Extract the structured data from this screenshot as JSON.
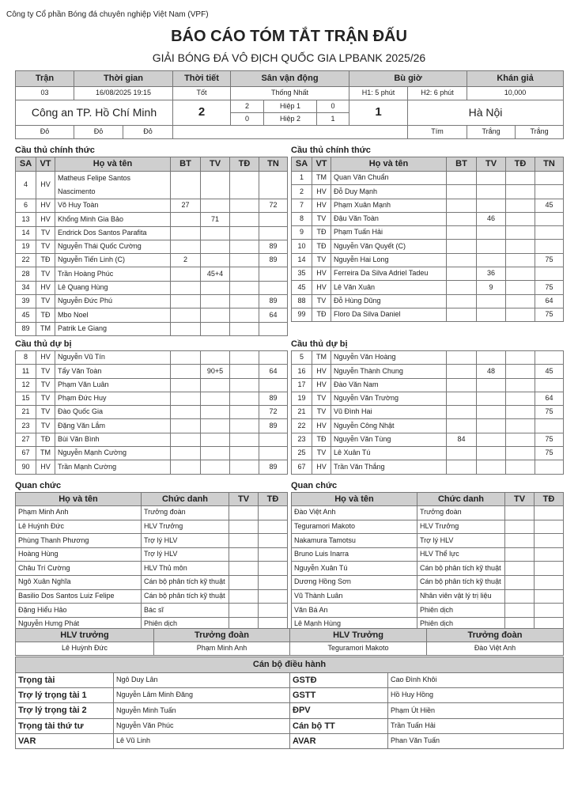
{
  "organization": "Công ty Cổ phần Bóng đá chuyên nghiệp Việt Nam (VPF)",
  "title": "BÁO CÁO TÓM TẮT TRẬN ĐẤU",
  "subtitle": "GIẢI BÓNG ĐÁ VÔ ĐỊCH QUỐC GIA LPBANK 2025/26",
  "match": {
    "headers": [
      "Trận",
      "Thời gian",
      "Thời tiết",
      "Sân vận động",
      "Bù giờ",
      "Khán giả"
    ],
    "match_no": "03",
    "time": "16/08/2025 19:15",
    "weather": "Tốt",
    "stadium": "Thống Nhất",
    "added_h1": "H1: 5 phút",
    "added_h2": "H2: 6 phút",
    "attendance": "10,000",
    "home_team": "Công an TP. Hồ Chí Minh",
    "away_team": "Hà Nội",
    "home_score": "2",
    "away_score": "1",
    "half1": {
      "label": "Hiệp 1",
      "home": "2",
      "away": "0"
    },
    "half2": {
      "label": "Hiệp 2",
      "home": "0",
      "away": "1"
    },
    "home_colors": [
      "Đỏ",
      "Đỏ",
      "Đỏ"
    ],
    "away_colors": [
      "Tím",
      "Trắng",
      "Trắng"
    ]
  },
  "labels": {
    "starters": "Cầu thủ chính thức",
    "subs": "Cầu thủ dự bị",
    "officials": "Quan chức",
    "player_headers": [
      "SA",
      "VT",
      "Họ và tên",
      "BT",
      "TV",
      "TĐ",
      "TN"
    ],
    "official_headers": [
      "Họ và tên",
      "Chức danh",
      "TV",
      "TĐ"
    ]
  },
  "home": {
    "starters": [
      [
        "4",
        "HV",
        "Matheus Felipe Santos Nascimento",
        "",
        "",
        "",
        ""
      ],
      [
        "6",
        "HV",
        "Võ Huy Toàn",
        "27",
        "",
        "",
        "72"
      ],
      [
        "13",
        "HV",
        "Khổng Minh Gia Bảo",
        "",
        "71",
        "",
        ""
      ],
      [
        "14",
        "TV",
        "Endrick Dos Santos Parafita",
        "",
        "",
        "",
        ""
      ],
      [
        "19",
        "TV",
        "Nguyễn Thái Quốc Cường",
        "",
        "",
        "",
        "89"
      ],
      [
        "22",
        "TĐ",
        "Nguyễn Tiến Linh (C)",
        "2",
        "",
        "",
        "89"
      ],
      [
        "28",
        "TV",
        "Trần Hoàng Phúc",
        "",
        "45+4",
        "",
        ""
      ],
      [
        "34",
        "HV",
        "Lê Quang Hùng",
        "",
        "",
        "",
        ""
      ],
      [
        "39",
        "TV",
        "Nguyễn Đức Phú",
        "",
        "",
        "",
        "89"
      ],
      [
        "45",
        "TĐ",
        "Mbo Noel",
        "",
        "",
        "",
        "64"
      ],
      [
        "89",
        "TM",
        "Patrik Le Giang",
        "",
        "",
        "",
        ""
      ]
    ],
    "subs": [
      [
        "8",
        "HV",
        "Nguyễn Vũ Tín",
        "",
        "",
        "",
        ""
      ],
      [
        "11",
        "TV",
        "Tẩy Văn Toàn",
        "",
        "90+5",
        "",
        "64"
      ],
      [
        "12",
        "TV",
        "Phạm Văn Luân",
        "",
        "",
        "",
        ""
      ],
      [
        "15",
        "TV",
        "Phạm Đức Huy",
        "",
        "",
        "",
        "89"
      ],
      [
        "21",
        "TV",
        "Đào Quốc Gia",
        "",
        "",
        "",
        "72"
      ],
      [
        "23",
        "TV",
        "Đặng Văn Lắm",
        "",
        "",
        "",
        "89"
      ],
      [
        "27",
        "TĐ",
        "Bùi Văn Bình",
        "",
        "",
        "",
        ""
      ],
      [
        "67",
        "TM",
        "Nguyễn Mạnh Cường",
        "",
        "",
        "",
        ""
      ],
      [
        "90",
        "HV",
        "Trần Mạnh Cường",
        "",
        "",
        "",
        "89"
      ]
    ],
    "officials": [
      [
        "Phạm Minh Anh",
        "Trưởng đoàn",
        "",
        ""
      ],
      [
        "Lê Huỳnh Đức",
        "HLV Trưởng",
        "",
        ""
      ],
      [
        "Phùng Thanh Phương",
        "Trợ lý HLV",
        "",
        ""
      ],
      [
        "Hoàng Hùng",
        "Trợ lý HLV",
        "",
        ""
      ],
      [
        "Châu Trí Cường",
        "HLV Thủ môn",
        "",
        ""
      ],
      [
        "Ngô Xuân Nghĩa",
        "Cán bộ phân tích kỹ thuật",
        "",
        ""
      ],
      [
        "Basilio Dos Santos Luiz Felipe",
        "Cán bộ phân tích kỹ thuật",
        "",
        ""
      ],
      [
        "Đặng Hiểu Hảo",
        "Bác sĩ",
        "",
        ""
      ],
      [
        "Nguyễn Hưng Phát",
        "Phiên dịch",
        "",
        ""
      ]
    ]
  },
  "away": {
    "starters": [
      [
        "1",
        "TM",
        "Quan Văn Chuẩn",
        "",
        "",
        "",
        ""
      ],
      [
        "2",
        "HV",
        "Đỗ Duy Mạnh",
        "",
        "",
        "",
        ""
      ],
      [
        "7",
        "HV",
        "Phạm Xuân Mạnh",
        "",
        "",
        "",
        "45"
      ],
      [
        "8",
        "TV",
        "Đậu Văn Toàn",
        "",
        "46",
        "",
        ""
      ],
      [
        "9",
        "TĐ",
        "Phạm Tuấn Hải",
        "",
        "",
        "",
        ""
      ],
      [
        "10",
        "TĐ",
        "Nguyễn Văn Quyết (C)",
        "",
        "",
        "",
        ""
      ],
      [
        "14",
        "TV",
        "Nguyễn Hai Long",
        "",
        "",
        "",
        "75"
      ],
      [
        "35",
        "HV",
        "Ferreira Da Silva Adriel Tadeu",
        "",
        "36",
        "",
        ""
      ],
      [
        "45",
        "HV",
        "Lê Văn Xuân",
        "",
        "9",
        "",
        "75"
      ],
      [
        "88",
        "TV",
        "Đỗ Hùng Dũng",
        "",
        "",
        "",
        "64"
      ],
      [
        "99",
        "TĐ",
        "Floro Da Silva Daniel",
        "",
        "",
        "",
        "75"
      ]
    ],
    "subs": [
      [
        "5",
        "TM",
        "Nguyễn Văn Hoàng",
        "",
        "",
        "",
        ""
      ],
      [
        "16",
        "HV",
        "Nguyễn Thành Chung",
        "",
        "48",
        "",
        "45"
      ],
      [
        "17",
        "HV",
        "Đào Văn Nam",
        "",
        "",
        "",
        ""
      ],
      [
        "19",
        "TV",
        "Nguyễn Văn Trường",
        "",
        "",
        "",
        "64"
      ],
      [
        "21",
        "TV",
        "Vũ Đình Hai",
        "",
        "",
        "",
        "75"
      ],
      [
        "22",
        "HV",
        "Nguyễn Công Nhật",
        "",
        "",
        "",
        ""
      ],
      [
        "23",
        "TĐ",
        "Nguyễn Văn Tùng",
        "84",
        "",
        "",
        "75"
      ],
      [
        "25",
        "TV",
        "Lê Xuân Tú",
        "",
        "",
        "",
        "75"
      ],
      [
        "67",
        "HV",
        "Trần Văn Thắng",
        "",
        "",
        "",
        ""
      ]
    ],
    "officials": [
      [
        "Đào Việt Anh",
        "Trưởng đoàn",
        "",
        ""
      ],
      [
        "Teguramori Makoto",
        "HLV Trưởng",
        "",
        ""
      ],
      [
        "Nakamura Tamotsu",
        "Trợ lý HLV",
        "",
        ""
      ],
      [
        "Bruno Luis Inarra",
        "HLV Thể lực",
        "",
        ""
      ],
      [
        "Nguyễn Xuân Tú",
        "Cán bộ phân tích kỹ thuật",
        "",
        ""
      ],
      [
        "Dương Hồng Sơn",
        "Cán bộ phân tích kỹ thuật",
        "",
        ""
      ],
      [
        "Vũ Thành Luân",
        "Nhân viên vật lý trị liệu",
        "",
        ""
      ],
      [
        "Văn Bá An",
        "Phiên dịch",
        "",
        ""
      ],
      [
        "Lê Mạnh Hùng",
        "Phiên dịch",
        "",
        ""
      ]
    ]
  },
  "leaders": {
    "headers": [
      "HLV trưởng",
      "Trưởng đoàn",
      "HLV Trưởng",
      "Trưởng đoàn"
    ],
    "values": [
      "Lê Huỳnh Đức",
      "Phạm Minh Anh",
      "Teguramori Makoto",
      "Đào Việt Anh"
    ]
  },
  "match_officials": {
    "title": "Cán bộ điều hành",
    "rows": [
      [
        "Trọng tài",
        "Ngô Duy Lân",
        "GSTĐ",
        "Cao Đình Khôi"
      ],
      [
        "Trợ lý trọng tài 1",
        "Nguyễn Lâm Minh Đăng",
        "GSTT",
        "Hồ Huy Hồng"
      ],
      [
        "Trợ lý trọng tài 2",
        "Nguyễn Minh Tuấn",
        "ĐPV",
        "Phạm Út Hiền"
      ],
      [
        "Trọng tài thứ tư",
        "Nguyễn Văn Phúc",
        "Cán bộ TT",
        "Trần Tuấn Hải"
      ],
      [
        "VAR",
        "Lê Vũ Linh",
        "AVAR",
        "Phan Văn Tuấn"
      ]
    ]
  }
}
